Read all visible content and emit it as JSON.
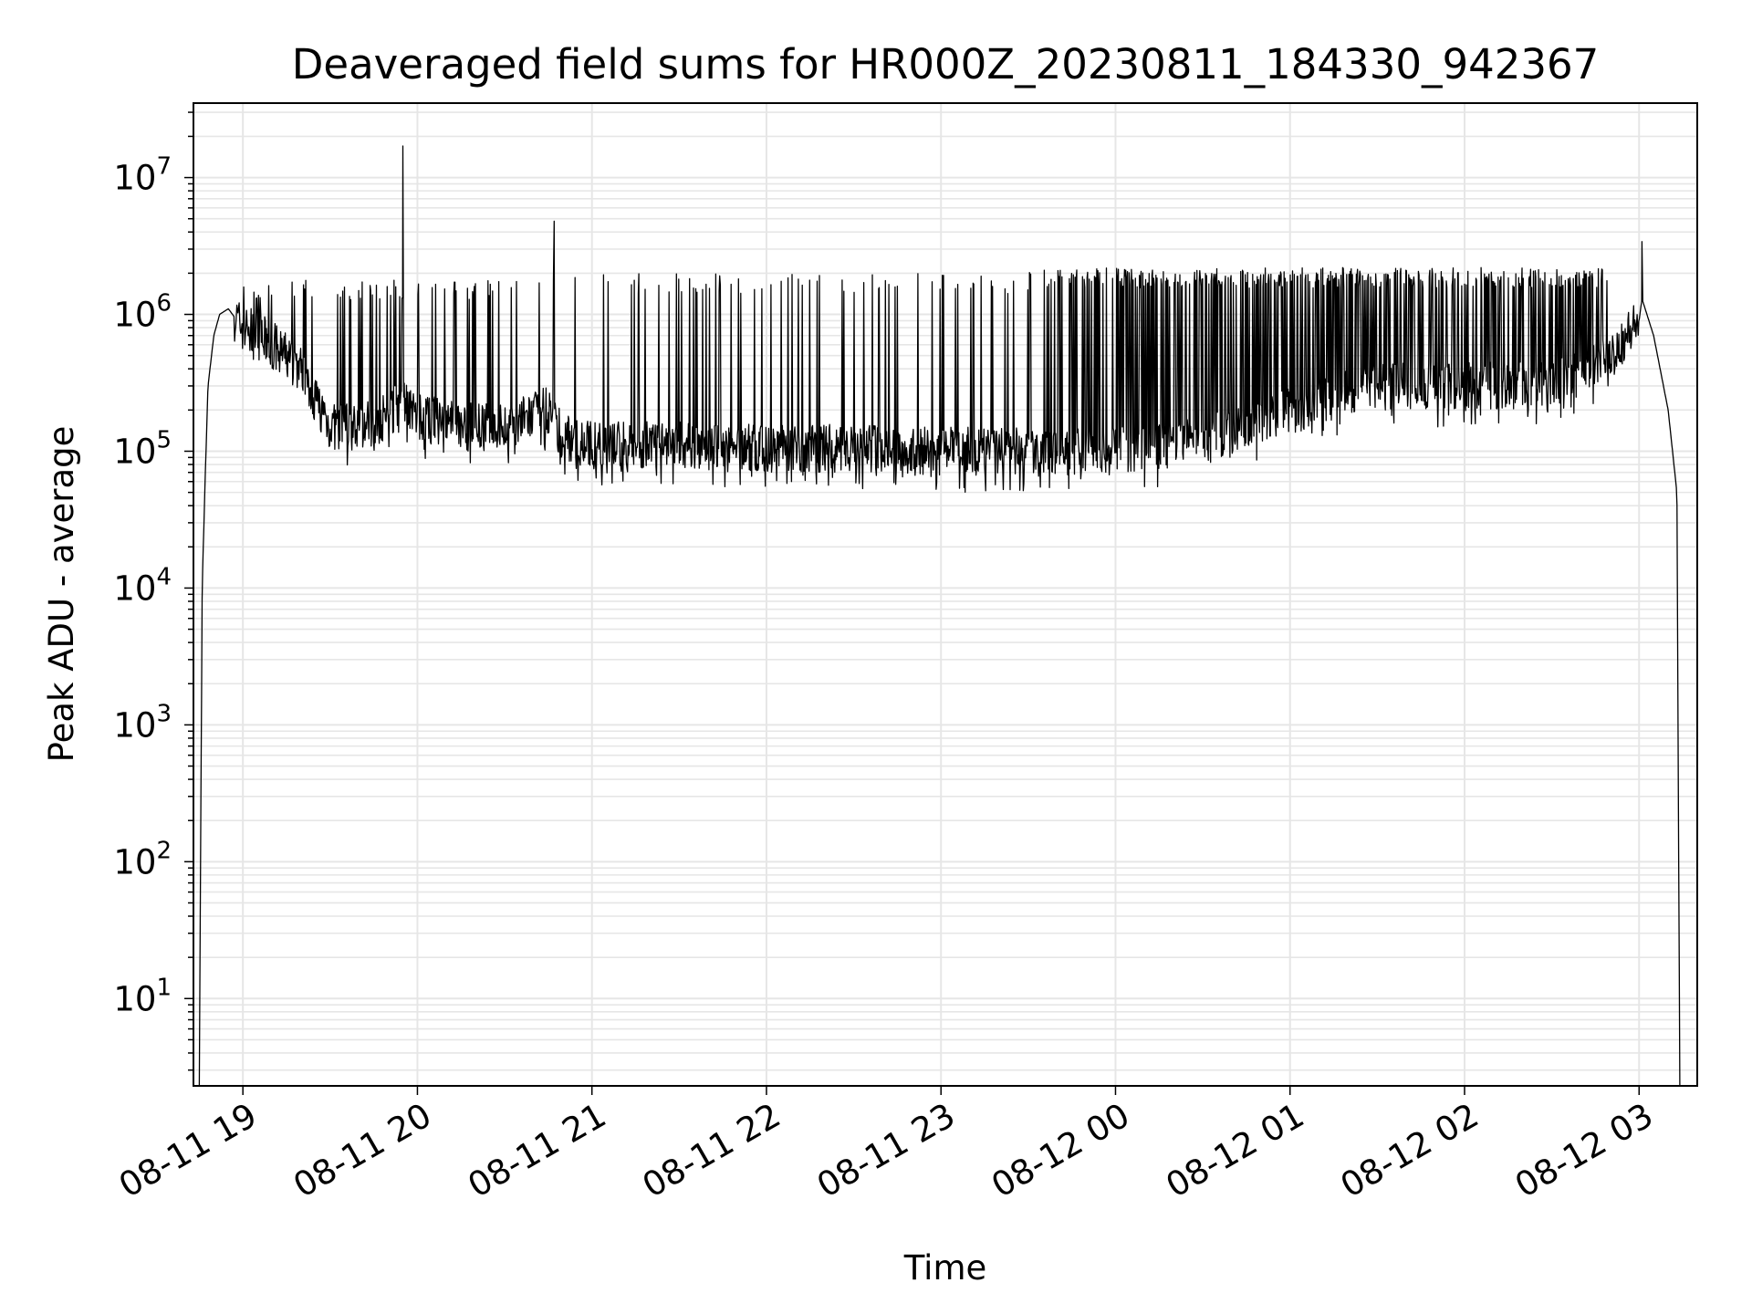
{
  "chart_data": {
    "type": "line",
    "title": "Deaveraged field sums for HR000Z_20230811_184330_942367",
    "xlabel": "Time",
    "ylabel": "Peak ADU - average",
    "y_scale": "log",
    "ylim": [
      2.3,
      35000000
    ],
    "xlim": [
      "2023-08-11 18:43",
      "2023-08-12 03:20"
    ],
    "x_ticks": [
      "08-11 19",
      "08-11 20",
      "08-11 21",
      "08-11 22",
      "08-11 23",
      "08-12 00",
      "08-12 01",
      "08-12 02",
      "08-12 03"
    ],
    "y_ticks": [
      {
        "base": "10",
        "exp": "1",
        "value": 10
      },
      {
        "base": "10",
        "exp": "2",
        "value": 100
      },
      {
        "base": "10",
        "exp": "3",
        "value": 1000
      },
      {
        "base": "10",
        "exp": "4",
        "value": 10000
      },
      {
        "base": "10",
        "exp": "5",
        "value": 100000
      },
      {
        "base": "10",
        "exp": "6",
        "value": 1000000
      },
      {
        "base": "10",
        "exp": "7",
        "value": 10000000
      }
    ],
    "grid": true,
    "line_color": "#000000",
    "grid_color": "#e6e6e6",
    "series": [
      {
        "x": [
          "2023-08-11 18:45",
          "2023-08-11 18:46",
          "2023-08-11 18:47",
          "2023-08-11 18:48",
          "2023-08-11 18:50",
          "2023-08-11 18:52",
          "2023-08-11 18:55",
          "2023-08-11 18:58",
          "2023-08-11 19:00",
          "2023-08-11 19:10",
          "2023-08-11 19:20",
          "2023-08-11 19:30",
          "2023-08-11 19:40",
          "2023-08-11 19:50",
          "2023-08-11 19:55",
          "2023-08-11 20:00",
          "2023-08-11 20:15",
          "2023-08-11 20:30",
          "2023-08-11 20:45",
          "2023-08-11 20:50",
          "2023-08-11 21:00",
          "2023-08-11 21:30",
          "2023-08-11 22:00",
          "2023-08-11 22:30",
          "2023-08-11 23:00",
          "2023-08-11 23:30",
          "2023-08-12 00:00",
          "2023-08-12 00:30",
          "2023-08-12 01:00",
          "2023-08-12 01:30",
          "2023-08-12 02:00",
          "2023-08-12 02:30",
          "2023-08-12 02:50",
          "2023-08-12 03:00",
          "2023-08-12 03:01",
          "2023-08-12 03:05",
          "2023-08-12 03:10",
          "2023-08-12 03:13",
          "2023-08-12 03:14"
        ],
        "y": [
          2.3,
          10000,
          60000,
          300000,
          700000,
          1000000,
          1100000,
          900000,
          800000,
          600000,
          400000,
          150000,
          150000,
          180000,
          250000,
          180000,
          150000,
          150000,
          200000,
          130000,
          110000,
          110000,
          105000,
          105000,
          100000,
          100000,
          100000,
          120000,
          200000,
          300000,
          300000,
          300000,
          500000,
          900000,
          1300000,
          700000,
          200000,
          50000,
          2.3
        ]
      }
    ],
    "spikes": [
      {
        "x": "2023-08-11 19:55",
        "y": 17000000
      },
      {
        "x": "2023-08-11 20:47",
        "y": 4800000
      },
      {
        "x": "2023-08-12 03:01",
        "y": 3400000
      }
    ],
    "spike_bands": [
      {
        "start": "2023-08-11 18:55",
        "end": "2023-08-11 20:30",
        "peak": 1800000
      },
      {
        "start": "2023-08-11 20:30",
        "end": "2023-08-11 23:30",
        "peak": 2000000
      },
      {
        "start": "2023-08-11 23:30",
        "end": "2023-08-12 02:50",
        "peak": 2200000
      }
    ]
  }
}
